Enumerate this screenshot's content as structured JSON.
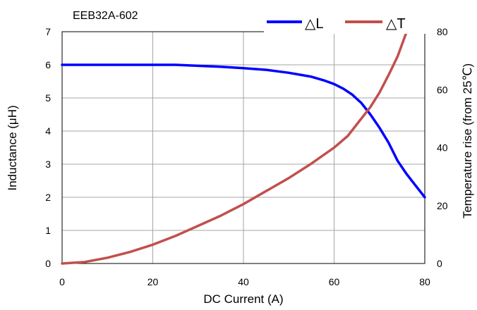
{
  "chart_data": {
    "type": "line",
    "title": "EEB32A-602",
    "xlabel": "DC Current (A)",
    "ylabel_left": "Inductance (μH)",
    "ylabel_right": "Temperature rise (from 25℃)",
    "xlim": [
      0,
      80
    ],
    "ylim_left": [
      0,
      7
    ],
    "ylim_right": [
      0,
      80
    ],
    "x_ticks": [
      0,
      20,
      40,
      60,
      80
    ],
    "y_left_ticks": [
      0,
      1,
      2,
      3,
      4,
      5,
      6,
      7
    ],
    "y_right_ticks": [
      0,
      20,
      40,
      60,
      80
    ],
    "grid": true,
    "legend_position": "top-right",
    "series": [
      {
        "name": "△L",
        "axis": "left",
        "color": "#0000ff",
        "points": [
          [
            0,
            6.0
          ],
          [
            10,
            6.0
          ],
          [
            20,
            6.0
          ],
          [
            25,
            6.0
          ],
          [
            30,
            5.97
          ],
          [
            35,
            5.94
          ],
          [
            40,
            5.9
          ],
          [
            45,
            5.85
          ],
          [
            50,
            5.76
          ],
          [
            55,
            5.64
          ],
          [
            58,
            5.52
          ],
          [
            60,
            5.42
          ],
          [
            62,
            5.28
          ],
          [
            64,
            5.1
          ],
          [
            66,
            4.85
          ],
          [
            68,
            4.5
          ],
          [
            70,
            4.1
          ],
          [
            72,
            3.65
          ],
          [
            74,
            3.1
          ],
          [
            76,
            2.7
          ],
          [
            78,
            2.35
          ],
          [
            80,
            2.0
          ]
        ]
      },
      {
        "name": "△T",
        "axis": "right",
        "color": "#c0504d",
        "points": [
          [
            0,
            0
          ],
          [
            5,
            0.5
          ],
          [
            10,
            2
          ],
          [
            15,
            4
          ],
          [
            20,
            6.5
          ],
          [
            25,
            9.5
          ],
          [
            30,
            13
          ],
          [
            35,
            16.5
          ],
          [
            40,
            20.5
          ],
          [
            45,
            25
          ],
          [
            50,
            29.5
          ],
          [
            55,
            34.5
          ],
          [
            60,
            40
          ],
          [
            63,
            44
          ],
          [
            66,
            50
          ],
          [
            68,
            54
          ],
          [
            70,
            59
          ],
          [
            72,
            65
          ],
          [
            74,
            71.5
          ],
          [
            76,
            80
          ]
        ]
      }
    ]
  }
}
